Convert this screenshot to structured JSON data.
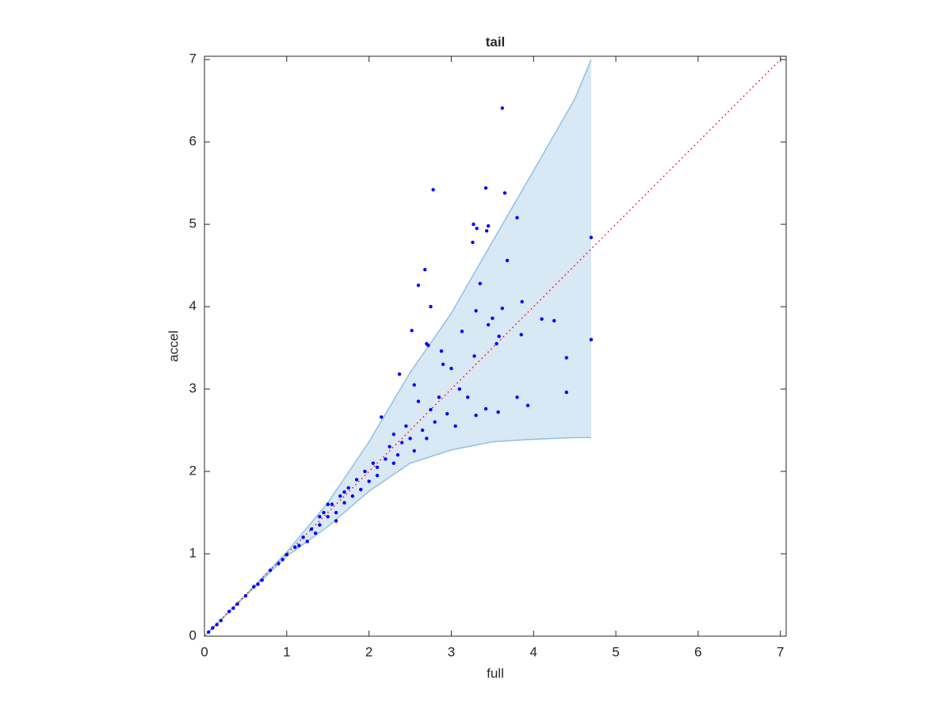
{
  "chart_data": {
    "type": "scatter",
    "title": "tail",
    "xlabel": "full",
    "ylabel": "accel",
    "xlim": [
      0,
      7.07
    ],
    "ylim": [
      0,
      7.04
    ],
    "xticks": [
      0,
      1,
      2,
      3,
      4,
      5,
      6,
      7
    ],
    "yticks": [
      0,
      1,
      2,
      3,
      4,
      5,
      6,
      7
    ],
    "band": {
      "color": "#d8e8f4",
      "edge_color": "#8fc1e3",
      "x": [
        0,
        0.5,
        1,
        1.5,
        2,
        2.5,
        3,
        3.5,
        4,
        4.5,
        4.7
      ],
      "upper": [
        0,
        0.5,
        1.02,
        1.62,
        2.36,
        3.2,
        3.92,
        4.79,
        5.65,
        6.52,
        7.0
      ],
      "lower": [
        0,
        0.49,
        0.97,
        1.33,
        1.76,
        2.1,
        2.26,
        2.36,
        2.39,
        2.41,
        2.41
      ]
    },
    "reference": {
      "color": "#ff0000",
      "x": [
        0,
        7.07
      ],
      "y": [
        0,
        7.07
      ]
    },
    "series": [
      {
        "color": "#0000ff",
        "x": [
          3.62,
          2.78,
          3.42,
          3.65,
          3.8,
          3.27,
          3.31,
          3.45,
          3.43,
          3.26,
          4.7,
          2.68,
          2.6,
          3.68,
          3.35,
          2.75,
          3.62,
          3.86,
          3.3,
          4.1,
          4.25,
          3.5,
          3.45,
          2.52,
          3.13,
          3.85,
          2.7,
          2.72,
          3.58,
          3.55,
          2.88,
          4.7,
          4.4,
          3.28,
          2.37,
          4.4,
          3.42,
          3.57,
          3.93,
          3.8,
          3.3,
          2.55,
          2.6,
          3.0,
          2.9,
          3.1,
          3.2,
          2.95,
          2.8,
          3.05,
          2.65,
          2.4,
          2.25,
          2.1,
          2.15,
          2.3,
          2.5,
          0.05,
          0.1,
          0.2,
          0.3,
          0.4,
          0.5,
          0.6,
          0.7,
          0.8,
          0.9,
          1.0,
          1.1,
          1.2,
          1.25,
          1.3,
          1.4,
          1.45,
          1.5,
          1.55,
          1.6,
          1.65,
          1.7,
          1.75,
          1.8,
          1.85,
          1.9,
          1.95,
          2.0,
          2.05,
          1.6,
          1.4,
          2.2,
          2.35,
          2.45,
          2.55,
          2.7,
          2.75,
          2.85,
          0.15,
          0.35,
          0.65,
          0.95,
          1.15,
          1.35,
          1.5,
          1.7,
          2.1,
          2.3
        ],
        "y": [
          6.41,
          5.42,
          5.44,
          5.38,
          5.08,
          5.0,
          4.95,
          4.98,
          4.92,
          4.78,
          4.84,
          4.45,
          4.26,
          4.56,
          4.28,
          4.0,
          3.98,
          4.06,
          3.95,
          3.85,
          3.83,
          3.86,
          3.78,
          3.71,
          3.7,
          3.66,
          3.55,
          3.53,
          3.64,
          3.55,
          3.46,
          3.6,
          3.38,
          3.4,
          3.18,
          2.96,
          2.76,
          2.72,
          2.8,
          2.9,
          2.68,
          3.05,
          2.85,
          3.25,
          3.3,
          3.0,
          2.9,
          2.7,
          2.6,
          2.55,
          2.5,
          2.35,
          2.3,
          2.05,
          2.66,
          2.45,
          2.4,
          0.05,
          0.1,
          0.19,
          0.3,
          0.39,
          0.49,
          0.6,
          0.68,
          0.8,
          0.88,
          0.99,
          1.08,
          1.2,
          1.15,
          1.3,
          1.35,
          1.5,
          1.45,
          1.6,
          1.5,
          1.7,
          1.62,
          1.8,
          1.7,
          1.9,
          1.78,
          2.0,
          1.88,
          2.1,
          1.4,
          1.45,
          2.15,
          2.2,
          2.55,
          2.25,
          2.4,
          2.75,
          2.9,
          0.14,
          0.34,
          0.63,
          0.93,
          1.1,
          1.25,
          1.6,
          1.75,
          1.95,
          2.1
        ]
      }
    ]
  }
}
